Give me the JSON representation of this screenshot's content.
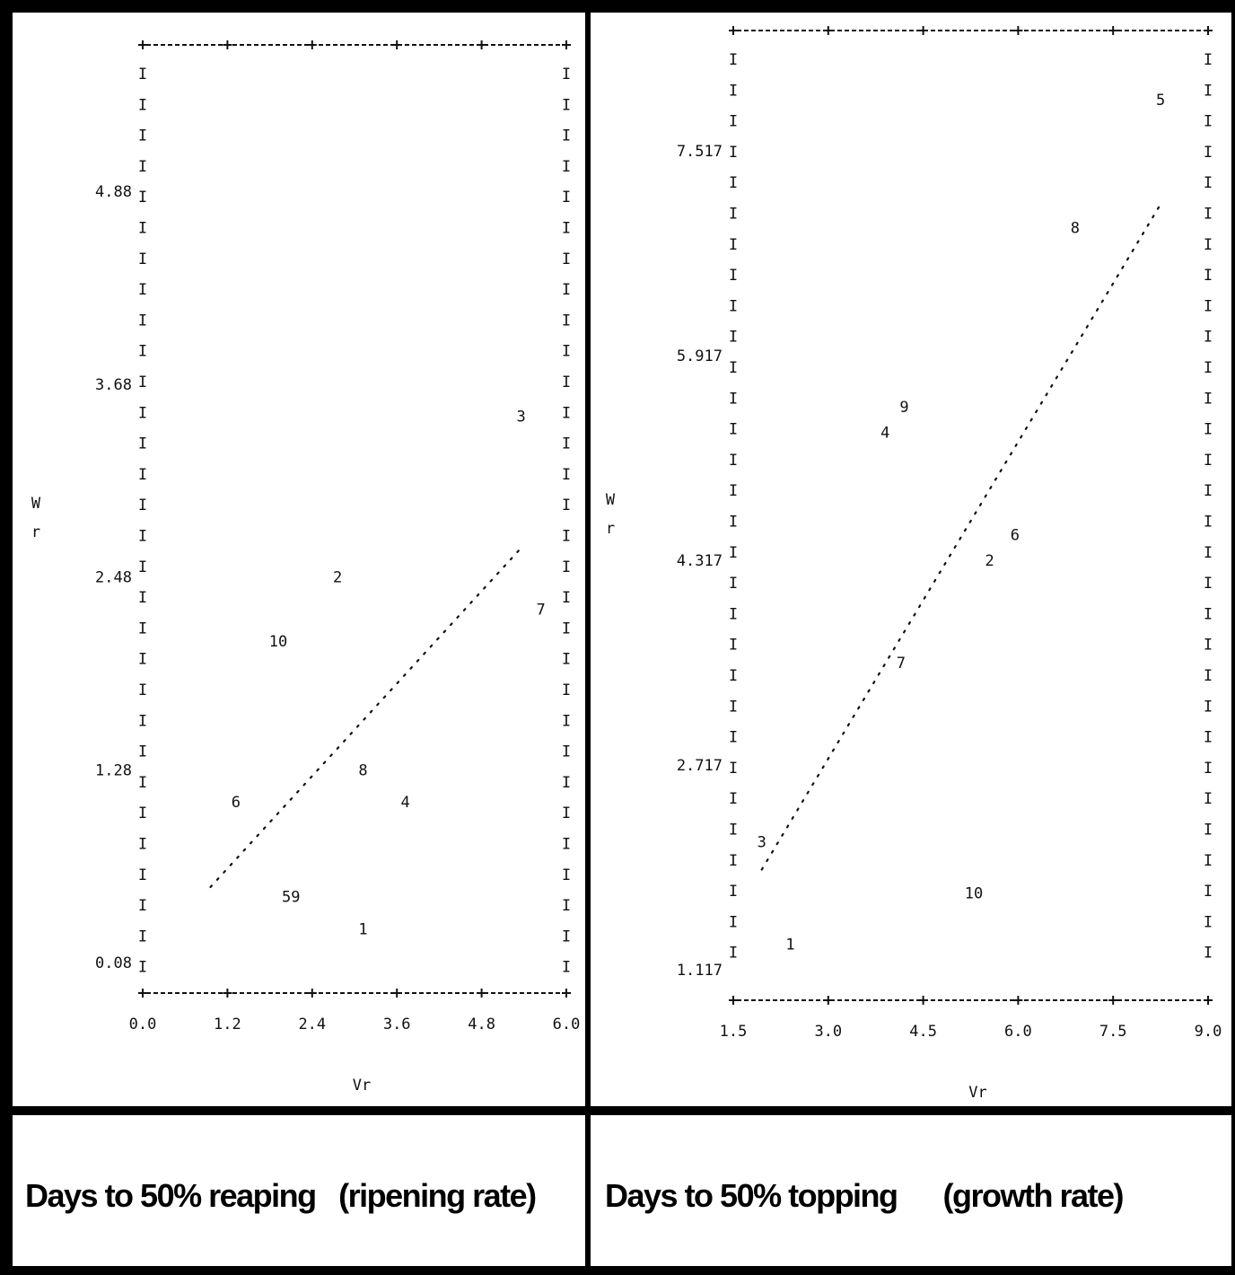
{
  "chart_data": [
    {
      "type": "scatter",
      "title": "",
      "caption": "Days to 50% reaping   (ripening rate)",
      "xlabel": "Vr",
      "ylabel": "W\nr",
      "xlim": [
        0.0,
        6.0
      ],
      "ylim": [
        0.08,
        5.68
      ],
      "x_ticks": [
        "0.0",
        "1.2",
        "2.4",
        "3.6",
        "4.8",
        "6.0"
      ],
      "y_ticks": [
        "0.08",
        "1.28",
        "2.48",
        "3.68",
        "4.88"
      ],
      "grid": false,
      "points": [
        {
          "label": "1",
          "x": 3.12,
          "y": 0.29
        },
        {
          "label": "2",
          "x": 2.76,
          "y": 2.48
        },
        {
          "label": "3",
          "x": 5.36,
          "y": 3.48
        },
        {
          "label": "4",
          "x": 3.72,
          "y": 1.08
        },
        {
          "label": "59",
          "x": 2.1,
          "y": 0.49
        },
        {
          "label": "6",
          "x": 1.32,
          "y": 1.08
        },
        {
          "label": "7",
          "x": 5.64,
          "y": 2.28
        },
        {
          "label": "8",
          "x": 3.12,
          "y": 1.28
        },
        {
          "label": "10",
          "x": 1.92,
          "y": 2.08
        }
      ],
      "regression_line": {
        "x": [
          0.96,
          5.4
        ],
        "y": [
          0.55,
          2.68
        ]
      }
    },
    {
      "type": "scatter",
      "title": "",
      "caption": "Days to 50% topping      (growth rate)",
      "xlabel": "Vr",
      "ylabel": "W\nr",
      "xlim": [
        1.5,
        9.0
      ],
      "ylim": [
        1.117,
        8.317
      ],
      "x_ticks": [
        "1.5",
        "3.0",
        "4.5",
        "6.0",
        "7.5",
        "9.0"
      ],
      "y_ticks": [
        "1.117",
        "2.717",
        "4.317",
        "5.917",
        "7.517"
      ],
      "grid": false,
      "points": [
        {
          "label": "1",
          "x": 2.4,
          "y": 1.317
        },
        {
          "label": "2",
          "x": 5.55,
          "y": 4.317
        },
        {
          "label": "3",
          "x": 1.95,
          "y": 2.117
        },
        {
          "label": "4",
          "x": 3.9,
          "y": 5.317
        },
        {
          "label": "5",
          "x": 8.25,
          "y": 7.917
        },
        {
          "label": "6",
          "x": 5.95,
          "y": 4.517
        },
        {
          "label": "7",
          "x": 4.15,
          "y": 3.517
        },
        {
          "label": "8",
          "x": 6.9,
          "y": 6.917
        },
        {
          "label": "9",
          "x": 4.2,
          "y": 5.517
        },
        {
          "label": "10",
          "x": 5.3,
          "y": 1.717
        }
      ],
      "regression_line": {
        "x": [
          1.95,
          8.25
        ],
        "y": [
          1.9,
          7.1
        ]
      }
    }
  ]
}
